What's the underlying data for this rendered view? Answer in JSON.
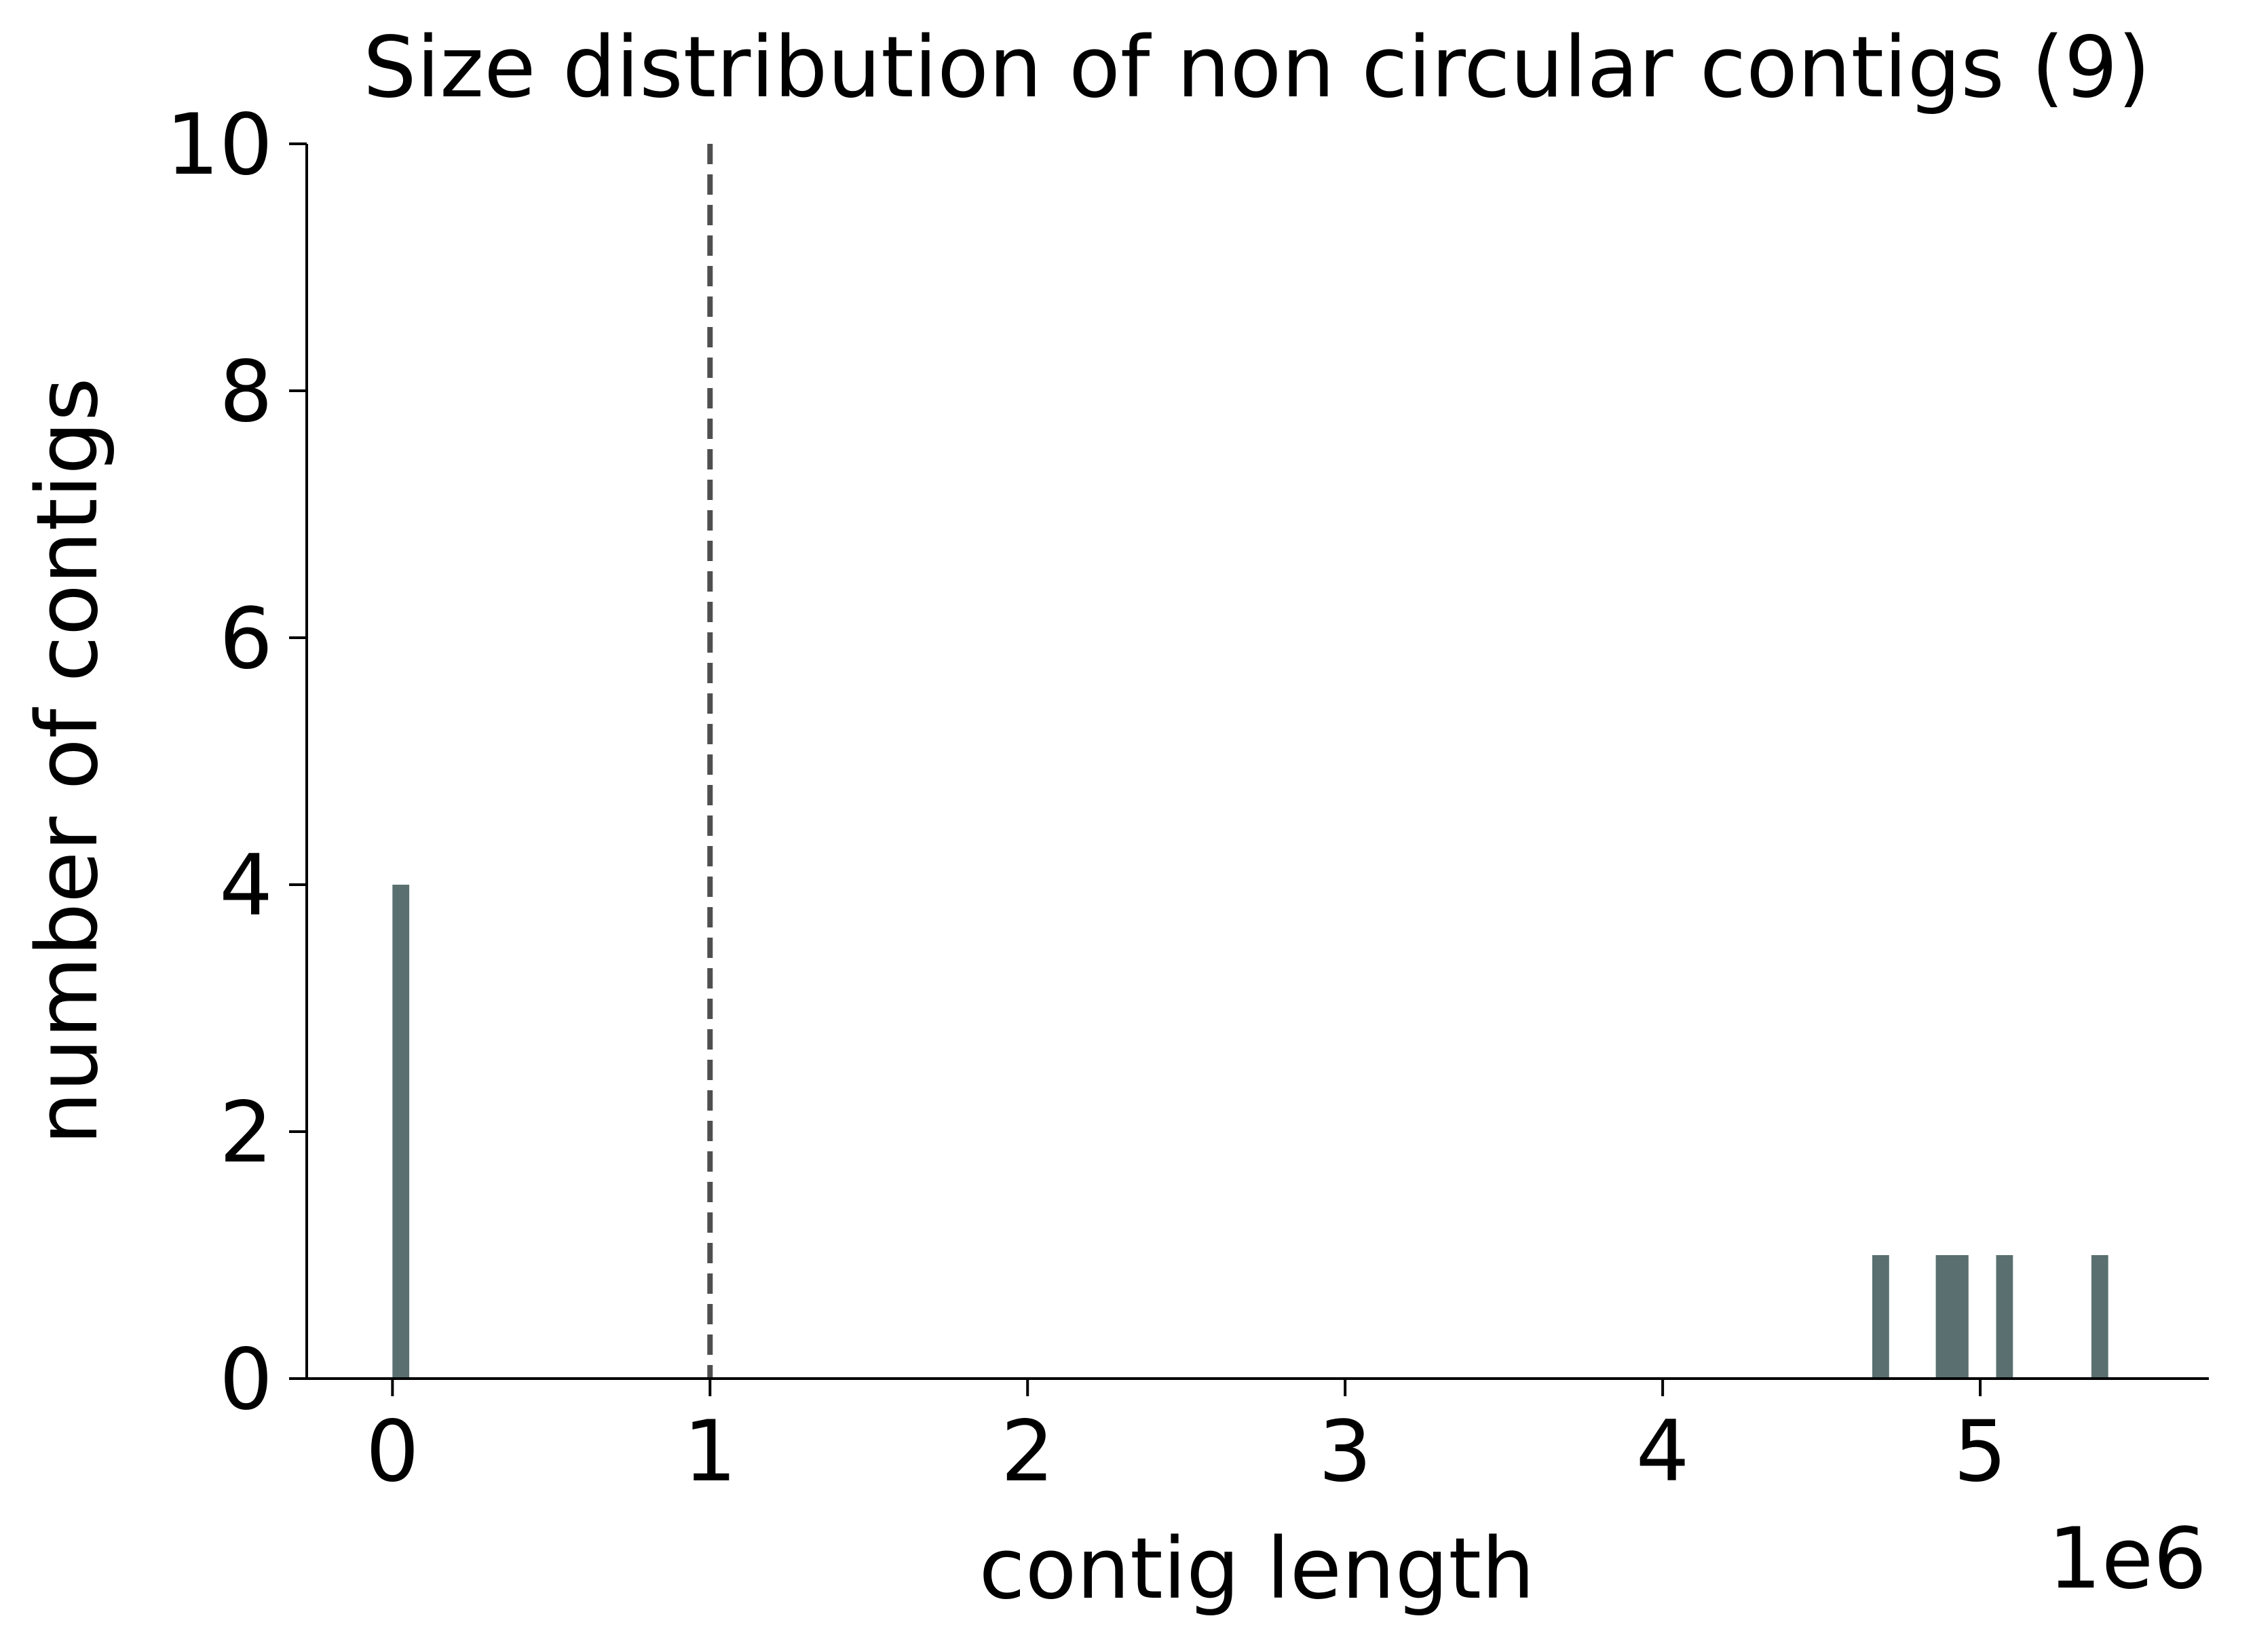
{
  "chart_data": {
    "type": "bar",
    "title": "Size distribution of non circular contigs (9)",
    "xlabel": "contig length",
    "ylabel": "number of contigs",
    "x_offset_label": "1e6",
    "xlim": [
      -0.27,
      5.72
    ],
    "ylim": [
      0,
      10
    ],
    "xticks": [
      0,
      1,
      2,
      3,
      4,
      5
    ],
    "xtick_labels": [
      "0",
      "1",
      "2",
      "3",
      "4",
      "5"
    ],
    "yticks": [
      0,
      2,
      4,
      6,
      8,
      10
    ],
    "ytick_labels": [
      "0",
      "2",
      "4",
      "6",
      "8",
      "10"
    ],
    "bin_width": 0.053,
    "bars": [
      {
        "x": 0.0,
        "count": 4
      },
      {
        "x": 4.66,
        "count": 1
      },
      {
        "x": 4.86,
        "count": 1
      },
      {
        "x": 4.91,
        "count": 1
      },
      {
        "x": 5.05,
        "count": 1
      },
      {
        "x": 5.35,
        "count": 1
      }
    ],
    "reference_line": {
      "x": 1.0,
      "style": "dashed"
    },
    "grid": false,
    "colors": {
      "bar": "#5a7070",
      "reference_line": "#4f4f4f",
      "axis": "#000000"
    }
  }
}
